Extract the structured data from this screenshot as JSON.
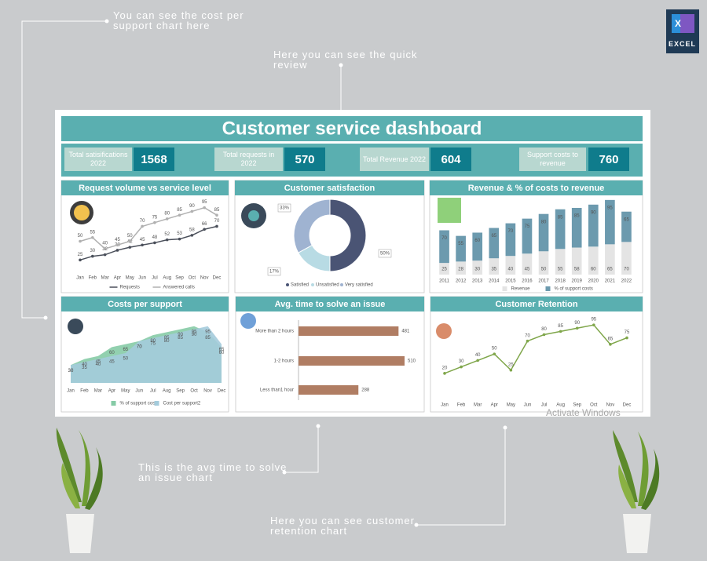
{
  "logo": "EXCEL",
  "annotations": [
    "You can see the cost per support chart here",
    "Here you can see the quick review",
    "This is the avg time to solve an issue chart",
    "Here you can see customer retention chart"
  ],
  "header": {
    "title": "Customer service dashboard"
  },
  "kpis": [
    {
      "label": "Total satisifications 2022",
      "value": 1568
    },
    {
      "label": "Total requests in 2022",
      "value": 570
    },
    {
      "label": "Total Revenue 2022",
      "value": 604
    },
    {
      "label": "Support costs to revenue",
      "value": 760
    }
  ],
  "watermark": "Activate Windows",
  "chart_data": [
    {
      "type": "line",
      "title": "Request volume vs service level",
      "categories": [
        "Jan",
        "Feb",
        "Mar",
        "Apr",
        "May",
        "Jun",
        "Jul",
        "Aug",
        "Sep",
        "Oct",
        "Nov",
        "Dec"
      ],
      "series": [
        {
          "name": "Requests",
          "color": "#4a4f5a",
          "values": [
            25,
            30,
            32,
            38,
            42,
            45,
            48,
            52,
            53,
            58,
            66,
            70
          ]
        },
        {
          "name": "Answered calls",
          "color": "#b0b0b0",
          "values": [
            50,
            55,
            40,
            45,
            50,
            70,
            75,
            80,
            85,
            90,
            95,
            85
          ]
        }
      ]
    },
    {
      "type": "pie",
      "title": "Customer satisfaction",
      "categories": [
        "Satisfied",
        "Unsatisfied",
        "Very satisfied"
      ],
      "values": [
        50,
        17,
        33
      ],
      "value_labels": [
        "50%",
        "17%",
        "33%"
      ],
      "colors": [
        "#4a5474",
        "#b8dbe4",
        "#9fb3d1"
      ]
    },
    {
      "type": "bar",
      "title": "Revenue & % of costs to revenue",
      "stacked": true,
      "categories": [
        "2011",
        "2012",
        "2013",
        "2014",
        "2015",
        "2016",
        "2017",
        "2018",
        "2019",
        "2020",
        "2021",
        "2022"
      ],
      "series": [
        {
          "name": "Revenue",
          "color": "#e4e4e4",
          "values": [
            25,
            28,
            30,
            35,
            40,
            45,
            50,
            55,
            58,
            60,
            65,
            70
          ]
        },
        {
          "name": "% of support costs",
          "color": "#6c9aae",
          "values": [
            70,
            55,
            60,
            65,
            70,
            75,
            80,
            85,
            85,
            90,
            95,
            65
          ]
        }
      ]
    },
    {
      "type": "area",
      "title": "Costs per support",
      "categories": [
        "Jan",
        "Feb",
        "Mar",
        "Apr",
        "May",
        "Jun",
        "Jul",
        "Aug",
        "Sep",
        "Oct",
        "Nov",
        "Dec"
      ],
      "series": [
        {
          "name": "% of support costs",
          "color": "#86cba6",
          "values": [
            30,
            40,
            45,
            60,
            65,
            70,
            80,
            85,
            90,
            95,
            85,
            60
          ]
        },
        {
          "name": "Cost per support2",
          "color": "#a4cbdb",
          "values": [
            30,
            35,
            40,
            45,
            50,
            70,
            75,
            80,
            85,
            90,
            95,
            65
          ]
        }
      ]
    },
    {
      "type": "bar",
      "orientation": "horizontal",
      "title": "Avg. time to solve an issue",
      "categories": [
        "More than 2 hours",
        "1-2 hours",
        "Less than1 hour"
      ],
      "values": [
        481,
        510,
        288
      ],
      "color": "#b07d63"
    },
    {
      "type": "line",
      "title": "Customer Retention",
      "categories": [
        "Jan",
        "Feb",
        "Mar",
        "Apr",
        "May",
        "Jun",
        "Jul",
        "Aug",
        "Sep",
        "Oct",
        "Nov",
        "Dec"
      ],
      "values": [
        20,
        30,
        40,
        50,
        25,
        70,
        80,
        85,
        90,
        95,
        65,
        75
      ],
      "color": "#7fa64a"
    }
  ]
}
